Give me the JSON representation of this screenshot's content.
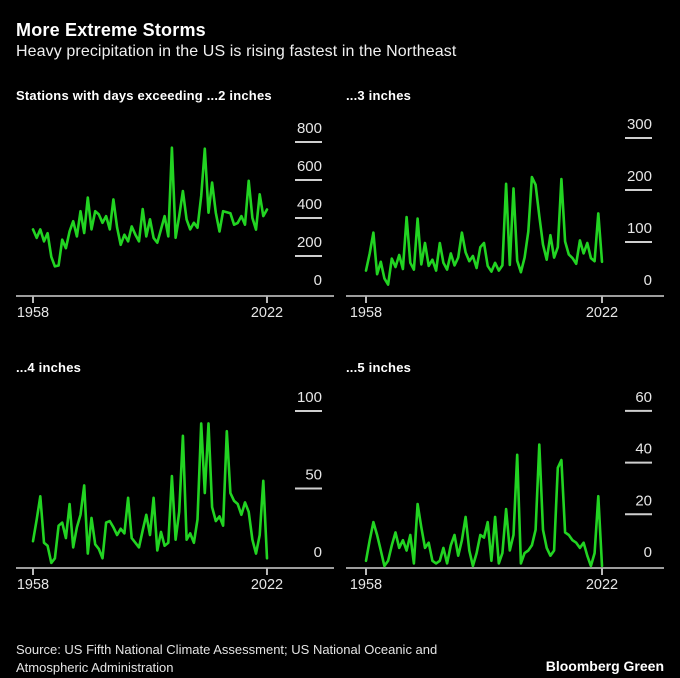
{
  "header": {
    "title": "More Extreme Storms",
    "subtitle": "Heavy precipitation in the US is rising fastest in the Northeast"
  },
  "footer": {
    "source": "Source: US Fifth National Climate Assessment; US National Oceanic and Atmospheric Administration",
    "brand": "Bloomberg Green"
  },
  "colors": {
    "line_green": "#22d422",
    "background": "#000000",
    "text": "#ffffff"
  },
  "chart_data": [
    {
      "type": "line",
      "title": "Stations with days exceeding ...2 inches",
      "x_start": 1958,
      "x_end": 2022,
      "x_tick_labels": [
        "1958",
        "2022"
      ],
      "y_ticks": [
        800,
        600,
        400,
        200,
        0
      ],
      "ylim": [
        0,
        800
      ],
      "line_color": "#22d422",
      "values": [
        340,
        295,
        340,
        277,
        320,
        196,
        145,
        150,
        286,
        241,
        330,
        383,
        303,
        436,
        321,
        508,
        340,
        436,
        419,
        375,
        410,
        340,
        498,
        350,
        259,
        312,
        277,
        356,
        312,
        277,
        447,
        303,
        393,
        295,
        270,
        340,
        410,
        303,
        770,
        296,
        410,
        542,
        392,
        340,
        375,
        349,
        516,
        765,
        428,
        587,
        428,
        329,
        436,
        430,
        425,
        365,
        374,
        410,
        365,
        596,
        400,
        339,
        525,
        410,
        445
      ]
    },
    {
      "type": "line",
      "title": "...3 inches",
      "x_start": 1958,
      "x_end": 2022,
      "x_tick_labels": [
        "1958",
        "2022"
      ],
      "y_ticks": [
        300,
        200,
        100,
        0
      ],
      "ylim": [
        0,
        300
      ],
      "line_color": "#22d422",
      "values": [
        45,
        78,
        118,
        38,
        62,
        30,
        18,
        68,
        52,
        75,
        48,
        148,
        60,
        47,
        145,
        57,
        98,
        54,
        66,
        45,
        98,
        60,
        47,
        78,
        55,
        70,
        118,
        80,
        63,
        73,
        50,
        90,
        98,
        54,
        43,
        60,
        45,
        55,
        212,
        56,
        203,
        64,
        42,
        70,
        120,
        225,
        210,
        150,
        95,
        66,
        113,
        70,
        90,
        221,
        101,
        76,
        69,
        58,
        103,
        78,
        98,
        69,
        63,
        155,
        62
      ]
    },
    {
      "type": "line",
      "title": "...4 inches",
      "x_start": 1958,
      "x_end": 2022,
      "x_tick_labels": [
        "1958",
        "2022"
      ],
      "y_ticks": [
        100,
        50,
        0
      ],
      "ylim": [
        0,
        100
      ],
      "line_color": "#22d422",
      "values": [
        16,
        30,
        45,
        15,
        13,
        2,
        5,
        26,
        28,
        18,
        40,
        12,
        25,
        33,
        52,
        8,
        31,
        14,
        11,
        5,
        28,
        29,
        25,
        20,
        24,
        21,
        44,
        18,
        15,
        12,
        23,
        33,
        20,
        44,
        10,
        22,
        13,
        15,
        58,
        17,
        35,
        84,
        17,
        21,
        15,
        30,
        92,
        47,
        92,
        38,
        29,
        32,
        26,
        87,
        47,
        42,
        40,
        33,
        41,
        35,
        17,
        8,
        20,
        55,
        5
      ]
    },
    {
      "type": "line",
      "title": "...5 inches",
      "x_start": 1958,
      "x_end": 2022,
      "x_tick_labels": [
        "1958",
        "2022"
      ],
      "y_ticks": [
        60,
        40,
        20,
        0
      ],
      "ylim": [
        0,
        60
      ],
      "line_color": "#22d422",
      "values": [
        2,
        10,
        17,
        12,
        6,
        0,
        2,
        8,
        13,
        7,
        10,
        6,
        12,
        1,
        24,
        15,
        7,
        9,
        2,
        1,
        2,
        7,
        1,
        8,
        12,
        4,
        10,
        19,
        6,
        0,
        5,
        12,
        11,
        17,
        2,
        19,
        1,
        5,
        22,
        6,
        12,
        43,
        1,
        5,
        6,
        8,
        14,
        47,
        14,
        7,
        4,
        6,
        38,
        41,
        13,
        12,
        10,
        9,
        7,
        9,
        4,
        0,
        5,
        27,
        0
      ]
    }
  ]
}
